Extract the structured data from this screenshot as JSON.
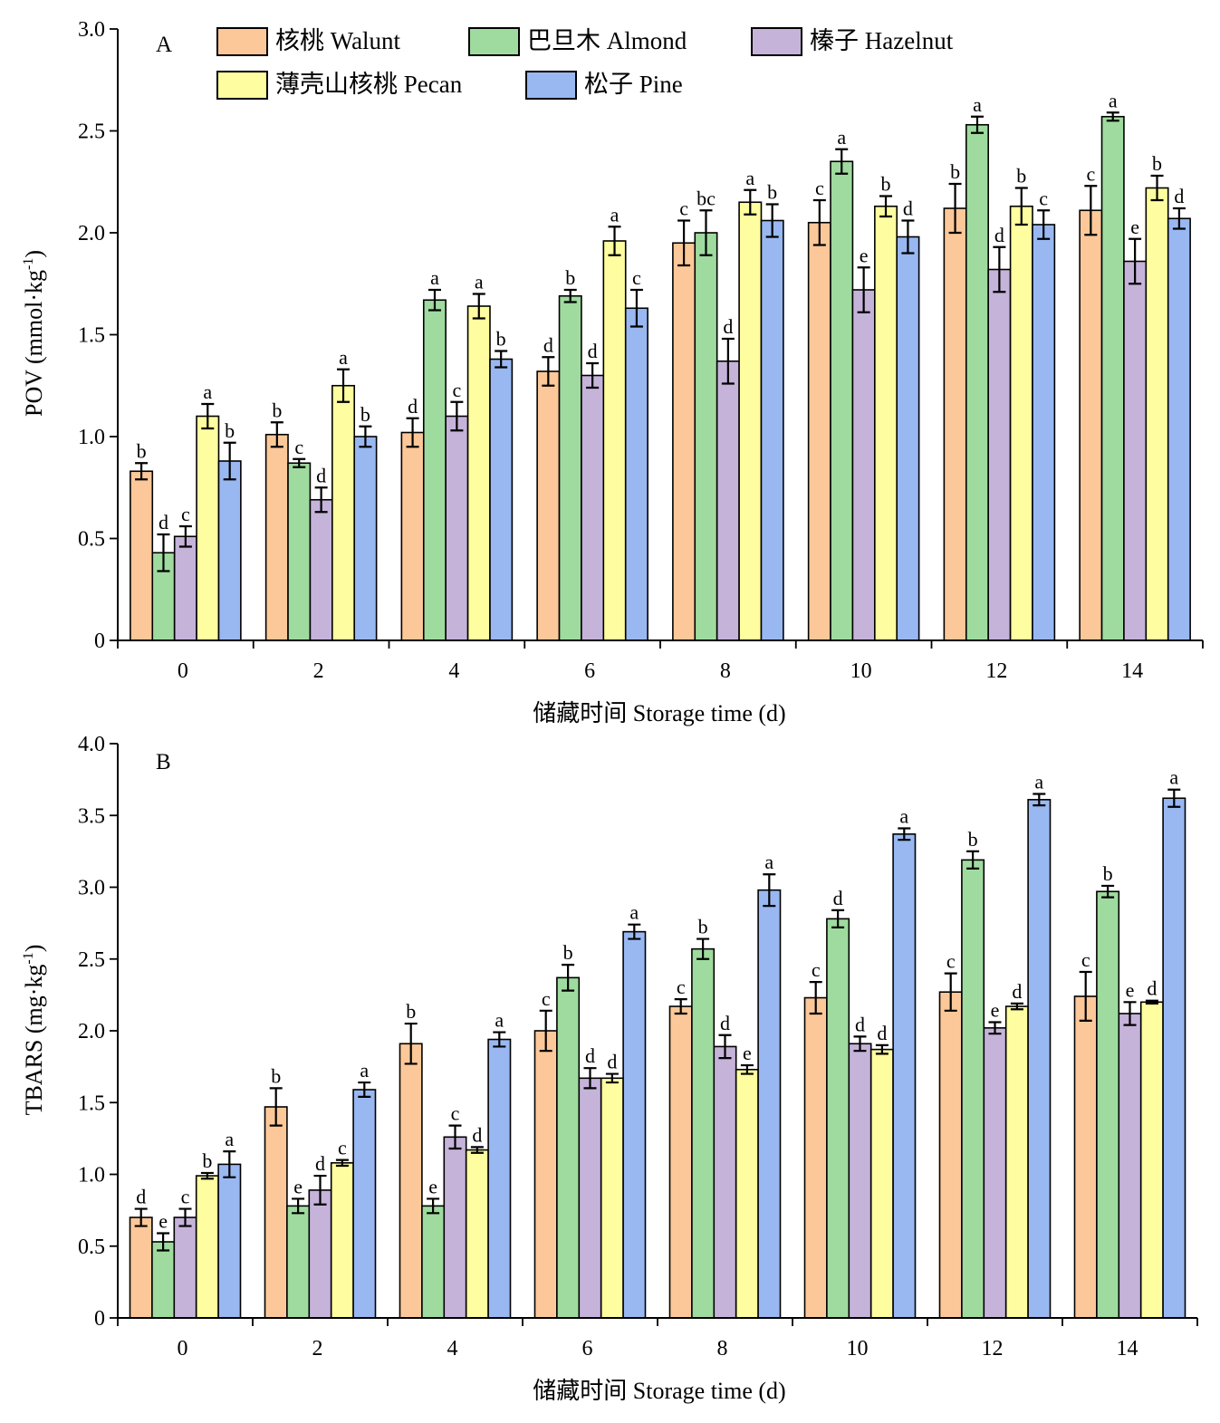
{
  "legend": {
    "series_labels": [
      "核桃 Walunt",
      "巴旦木 Almond",
      "榛子 Hazelnut",
      "薄壳山核桃 Pecan",
      "松子 Pine"
    ]
  },
  "colors": {
    "walnut": "#FCC899",
    "almond": "#9FDB9F",
    "hazelnut": "#C5B3DA",
    "pecan": "#FEFEA0",
    "pine": "#99B8F2",
    "axis": "#000000"
  },
  "chart_data": [
    {
      "type": "bar",
      "panel_label": "A",
      "xlabel": "储藏时间 Storage time (d)",
      "ylabel": "POV (mmol·kg",
      "ylabel_sup": "-1",
      "ylabel_tail": ")",
      "ylim": [
        0,
        3.0
      ],
      "yticks": [
        "0",
        "0.5",
        "1.0",
        "1.5",
        "2.0",
        "2.5",
        "3.0"
      ],
      "categories": [
        "0",
        "2",
        "4",
        "6",
        "8",
        "10",
        "12",
        "14"
      ],
      "grid": false,
      "legend_position": "top",
      "series": [
        {
          "name": "核桃 Walunt",
          "values": [
            0.83,
            1.01,
            1.02,
            1.32,
            1.95,
            2.05,
            2.12,
            2.11
          ],
          "errors": [
            0.04,
            0.06,
            0.07,
            0.07,
            0.11,
            0.11,
            0.12,
            0.12
          ],
          "labels": [
            "b",
            "b",
            "d",
            "d",
            "c",
            "c",
            "b",
            "c"
          ]
        },
        {
          "name": "巴旦木 Almond",
          "values": [
            0.43,
            0.87,
            1.67,
            1.69,
            2.0,
            2.35,
            2.53,
            2.57
          ],
          "errors": [
            0.09,
            0.02,
            0.05,
            0.03,
            0.11,
            0.06,
            0.04,
            0.02
          ],
          "labels": [
            "d",
            "c",
            "a",
            "b",
            "bc",
            "a",
            "a",
            "a"
          ]
        },
        {
          "name": "榛子 Hazelnut",
          "values": [
            0.51,
            0.69,
            1.1,
            1.3,
            1.37,
            1.72,
            1.82,
            1.86
          ],
          "errors": [
            0.05,
            0.06,
            0.07,
            0.06,
            0.11,
            0.11,
            0.11,
            0.11
          ],
          "labels": [
            "c",
            "d",
            "c",
            "d",
            "d",
            "e",
            "d",
            "e"
          ]
        },
        {
          "name": "薄壳山核桃 Pecan",
          "values": [
            1.1,
            1.25,
            1.64,
            1.96,
            2.15,
            2.13,
            2.13,
            2.22
          ],
          "errors": [
            0.06,
            0.08,
            0.06,
            0.07,
            0.06,
            0.05,
            0.09,
            0.06
          ],
          "labels": [
            "a",
            "a",
            "a",
            "a",
            "a",
            "b",
            "b",
            "b"
          ]
        },
        {
          "name": "松子 Pine",
          "values": [
            0.88,
            1.0,
            1.38,
            1.63,
            2.06,
            1.98,
            2.04,
            2.07
          ],
          "errors": [
            0.09,
            0.05,
            0.04,
            0.09,
            0.08,
            0.08,
            0.07,
            0.05
          ],
          "labels": [
            "b",
            "b",
            "b",
            "c",
            "b",
            "d",
            "c",
            "d"
          ]
        }
      ]
    },
    {
      "type": "bar",
      "panel_label": "B",
      "xlabel": "储藏时间 Storage time (d)",
      "ylabel": "TBARS (mg·kg",
      "ylabel_sup": "-1",
      "ylabel_tail": ")",
      "ylim": [
        0,
        4.0
      ],
      "yticks": [
        "0",
        "0.5",
        "1.0",
        "1.5",
        "2.0",
        "2.5",
        "3.0",
        "3.5",
        "4.0"
      ],
      "categories": [
        "0",
        "2",
        "4",
        "6",
        "8",
        "10",
        "12",
        "14"
      ],
      "grid": false,
      "series": [
        {
          "name": "核桃 Walunt",
          "values": [
            0.7,
            1.47,
            1.91,
            2.0,
            2.17,
            2.23,
            2.27,
            2.24
          ],
          "errors": [
            0.06,
            0.13,
            0.14,
            0.14,
            0.05,
            0.11,
            0.13,
            0.17
          ],
          "labels": [
            "d",
            "b",
            "b",
            "c",
            "c",
            "c",
            "c",
            "c"
          ]
        },
        {
          "name": "巴旦木 Almond",
          "values": [
            0.53,
            0.78,
            0.78,
            2.37,
            2.57,
            2.78,
            3.19,
            2.97
          ],
          "errors": [
            0.06,
            0.05,
            0.05,
            0.09,
            0.07,
            0.06,
            0.06,
            0.04
          ],
          "labels": [
            "e",
            "e",
            "e",
            "b",
            "b",
            "d",
            "b",
            "b"
          ]
        },
        {
          "name": "榛子 Hazelnut",
          "values": [
            0.7,
            0.89,
            1.26,
            1.67,
            1.89,
            1.91,
            2.02,
            2.12
          ],
          "errors": [
            0.06,
            0.1,
            0.08,
            0.07,
            0.08,
            0.05,
            0.04,
            0.08
          ],
          "labels": [
            "c",
            "d",
            "c",
            "d",
            "d",
            "d",
            "e",
            "e"
          ]
        },
        {
          "name": "薄壳山核桃 Pecan",
          "values": [
            0.99,
            1.08,
            1.17,
            1.67,
            1.73,
            1.87,
            2.17,
            2.2
          ],
          "errors": [
            0.02,
            0.02,
            0.02,
            0.03,
            0.03,
            0.03,
            0.02,
            0.01
          ],
          "labels": [
            "b",
            "c",
            "d",
            "d",
            "e",
            "d",
            "d",
            "d"
          ]
        },
        {
          "name": "松子 Pine",
          "values": [
            1.07,
            1.59,
            1.94,
            2.69,
            2.98,
            3.37,
            3.61,
            3.62
          ],
          "errors": [
            0.09,
            0.05,
            0.05,
            0.05,
            0.11,
            0.04,
            0.04,
            0.06
          ],
          "labels": [
            "a",
            "a",
            "a",
            "a",
            "a",
            "a",
            "a",
            "a"
          ]
        }
      ]
    }
  ]
}
